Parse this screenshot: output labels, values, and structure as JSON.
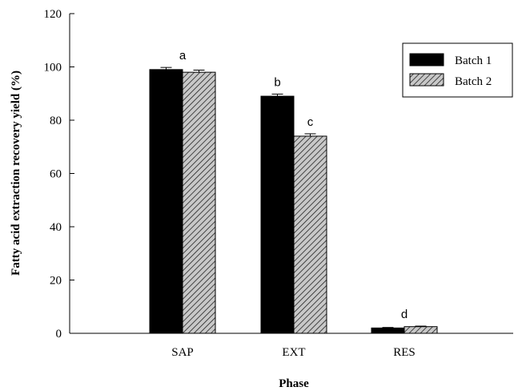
{
  "chart_data": {
    "type": "bar",
    "title": "",
    "xlabel": "Phase",
    "ylabel": "Fatty acid extraction recovery yield (%)",
    "ylim": [
      0,
      120
    ],
    "yticks": [
      0,
      20,
      40,
      60,
      80,
      100,
      120
    ],
    "categories": [
      "SAP",
      "EXT",
      "RES"
    ],
    "series": [
      {
        "name": "Batch 1",
        "values": [
          99,
          89,
          2
        ],
        "errors": [
          0.8,
          0.8,
          0.2
        ],
        "fill": "#000000"
      },
      {
        "name": "Batch 2",
        "values": [
          98,
          74,
          2.5
        ],
        "errors": [
          0.8,
          0.9,
          0.2
        ],
        "fill": "hatched-gray"
      }
    ],
    "group_labels": [
      "a",
      "b",
      "c",
      "d"
    ],
    "legend": {
      "position": "top-right",
      "entries": [
        "Batch 1",
        "Batch 2"
      ]
    },
    "grid": false
  }
}
